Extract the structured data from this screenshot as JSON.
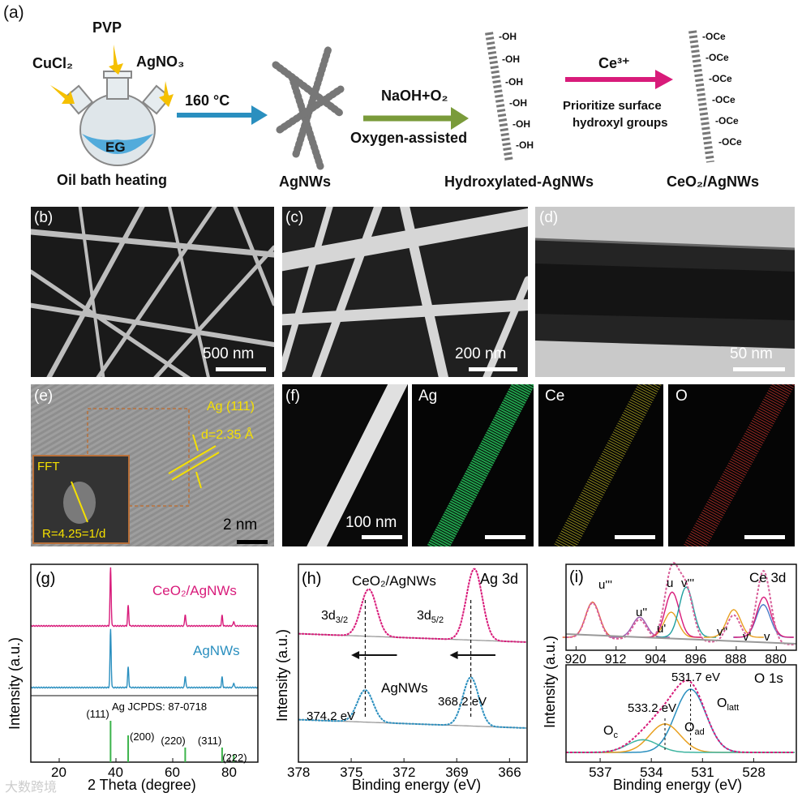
{
  "panel_a": {
    "label": "(a)",
    "reagents": [
      "PVP",
      "CuCl₂",
      "AgNO₃"
    ],
    "solvent": "EG",
    "heating": "Oil bath heating",
    "step1": "160 °C",
    "product1": "AgNWs",
    "step2_top": "NaOH+O₂",
    "step2_bottom": "Oxygen-assisted",
    "product2": "Hydroxylated-AgNWs",
    "oh": "-OH",
    "step3_top": "Ce³⁺",
    "step3_desc1": "Prioritize surface",
    "step3_desc2": "hydroxyl groups",
    "oce": "-OCe",
    "product3": "CeO₂/AgNWs"
  },
  "micrographs": {
    "b": {
      "label": "(b)",
      "scale": "500 nm"
    },
    "c": {
      "label": "(c)",
      "scale": "200 nm"
    },
    "d": {
      "label": "(d)",
      "scale": "50 nm"
    },
    "e": {
      "label": "(e)",
      "scale": "2 nm",
      "plane": "Ag (111)",
      "dspacing": "d=2.35 Å",
      "fft": "FFT",
      "fft_r": "R=4.25=1/d"
    },
    "f": {
      "label": "(f)",
      "scale": "100 nm",
      "maps": [
        "Ag",
        "Ce",
        "O"
      ]
    }
  },
  "colors": {
    "cyan": "#2a8fbf",
    "magenta": "#d81b7a",
    "green": "#7a9b3a",
    "jcpds": "#3cb44b",
    "gold": "#f5c000"
  },
  "chart_data": [
    {
      "panel": "(g)",
      "type": "line",
      "xlabel": "2 Theta (degree)",
      "ylabel": "Intensity (a.u.)",
      "xlim": [
        10,
        90
      ],
      "xticks": [
        20,
        40,
        60,
        80
      ],
      "series": [
        {
          "name": "CeO₂/AgNWs",
          "color": "#d81b7a",
          "peaks": [
            38.1,
            44.3,
            64.4,
            77.4,
            81.5
          ]
        },
        {
          "name": "AgNWs",
          "color": "#2a8fbf",
          "peaks": [
            38.1,
            44.3,
            64.4,
            77.4,
            81.5
          ]
        }
      ],
      "reference": "Ag JCPDS: 87-0718",
      "ref_peaks": [
        {
          "x": 38.1,
          "label": "(111)"
        },
        {
          "x": 44.3,
          "label": "(200)"
        },
        {
          "x": 64.4,
          "label": "(220)"
        },
        {
          "x": 77.4,
          "label": "(311)"
        },
        {
          "x": 81.5,
          "label": "(222)"
        }
      ]
    },
    {
      "panel": "(h)",
      "type": "line",
      "title": "Ag 3d",
      "xlabel": "Binding energy (eV)",
      "ylabel": "Intensity (a.u.)",
      "xlim": [
        378,
        365
      ],
      "xticks": [
        378,
        375,
        372,
        369,
        366
      ],
      "series": [
        {
          "name": "CeO₂/AgNWs",
          "color": "#d81b7a",
          "peaks": [
            374.0,
            368.0
          ]
        },
        {
          "name": "AgNWs",
          "color": "#2a8fbf",
          "peaks": [
            374.2,
            368.2
          ]
        }
      ],
      "peak_labels": [
        "3d3/2",
        "3d5/2"
      ],
      "annotations": [
        "374.2 eV",
        "368.2 eV"
      ]
    },
    {
      "panel": "(i)",
      "type": "line",
      "title": "Ce 3d",
      "xlim": [
        922,
        876
      ],
      "xticks": [
        920,
        912,
        904,
        896,
        888,
        880
      ],
      "peak_labels": [
        "u'''",
        "u''",
        "u'",
        "u",
        "v'''",
        "v''",
        "v'",
        "v"
      ],
      "peaks": [
        916.7,
        907.3,
        901.0,
        900.8,
        898.0,
        888.5,
        882.6,
        882.5
      ]
    },
    {
      "panel": "(i)",
      "type": "line",
      "title": "O 1s",
      "xlabel": "Binding energy (eV)",
      "ylabel": "Intensity (a.u.)",
      "xlim": [
        539,
        525.5
      ],
      "xticks": [
        537,
        534,
        531,
        528
      ],
      "components": [
        {
          "name": "O_latt",
          "center": 531.7,
          "label": "531.7 eV"
        },
        {
          "name": "O_ad",
          "center": 533.2,
          "label": "533.2 eV"
        },
        {
          "name": "O_c",
          "center": 534.5
        }
      ]
    }
  ],
  "watermark": "大数跨境"
}
